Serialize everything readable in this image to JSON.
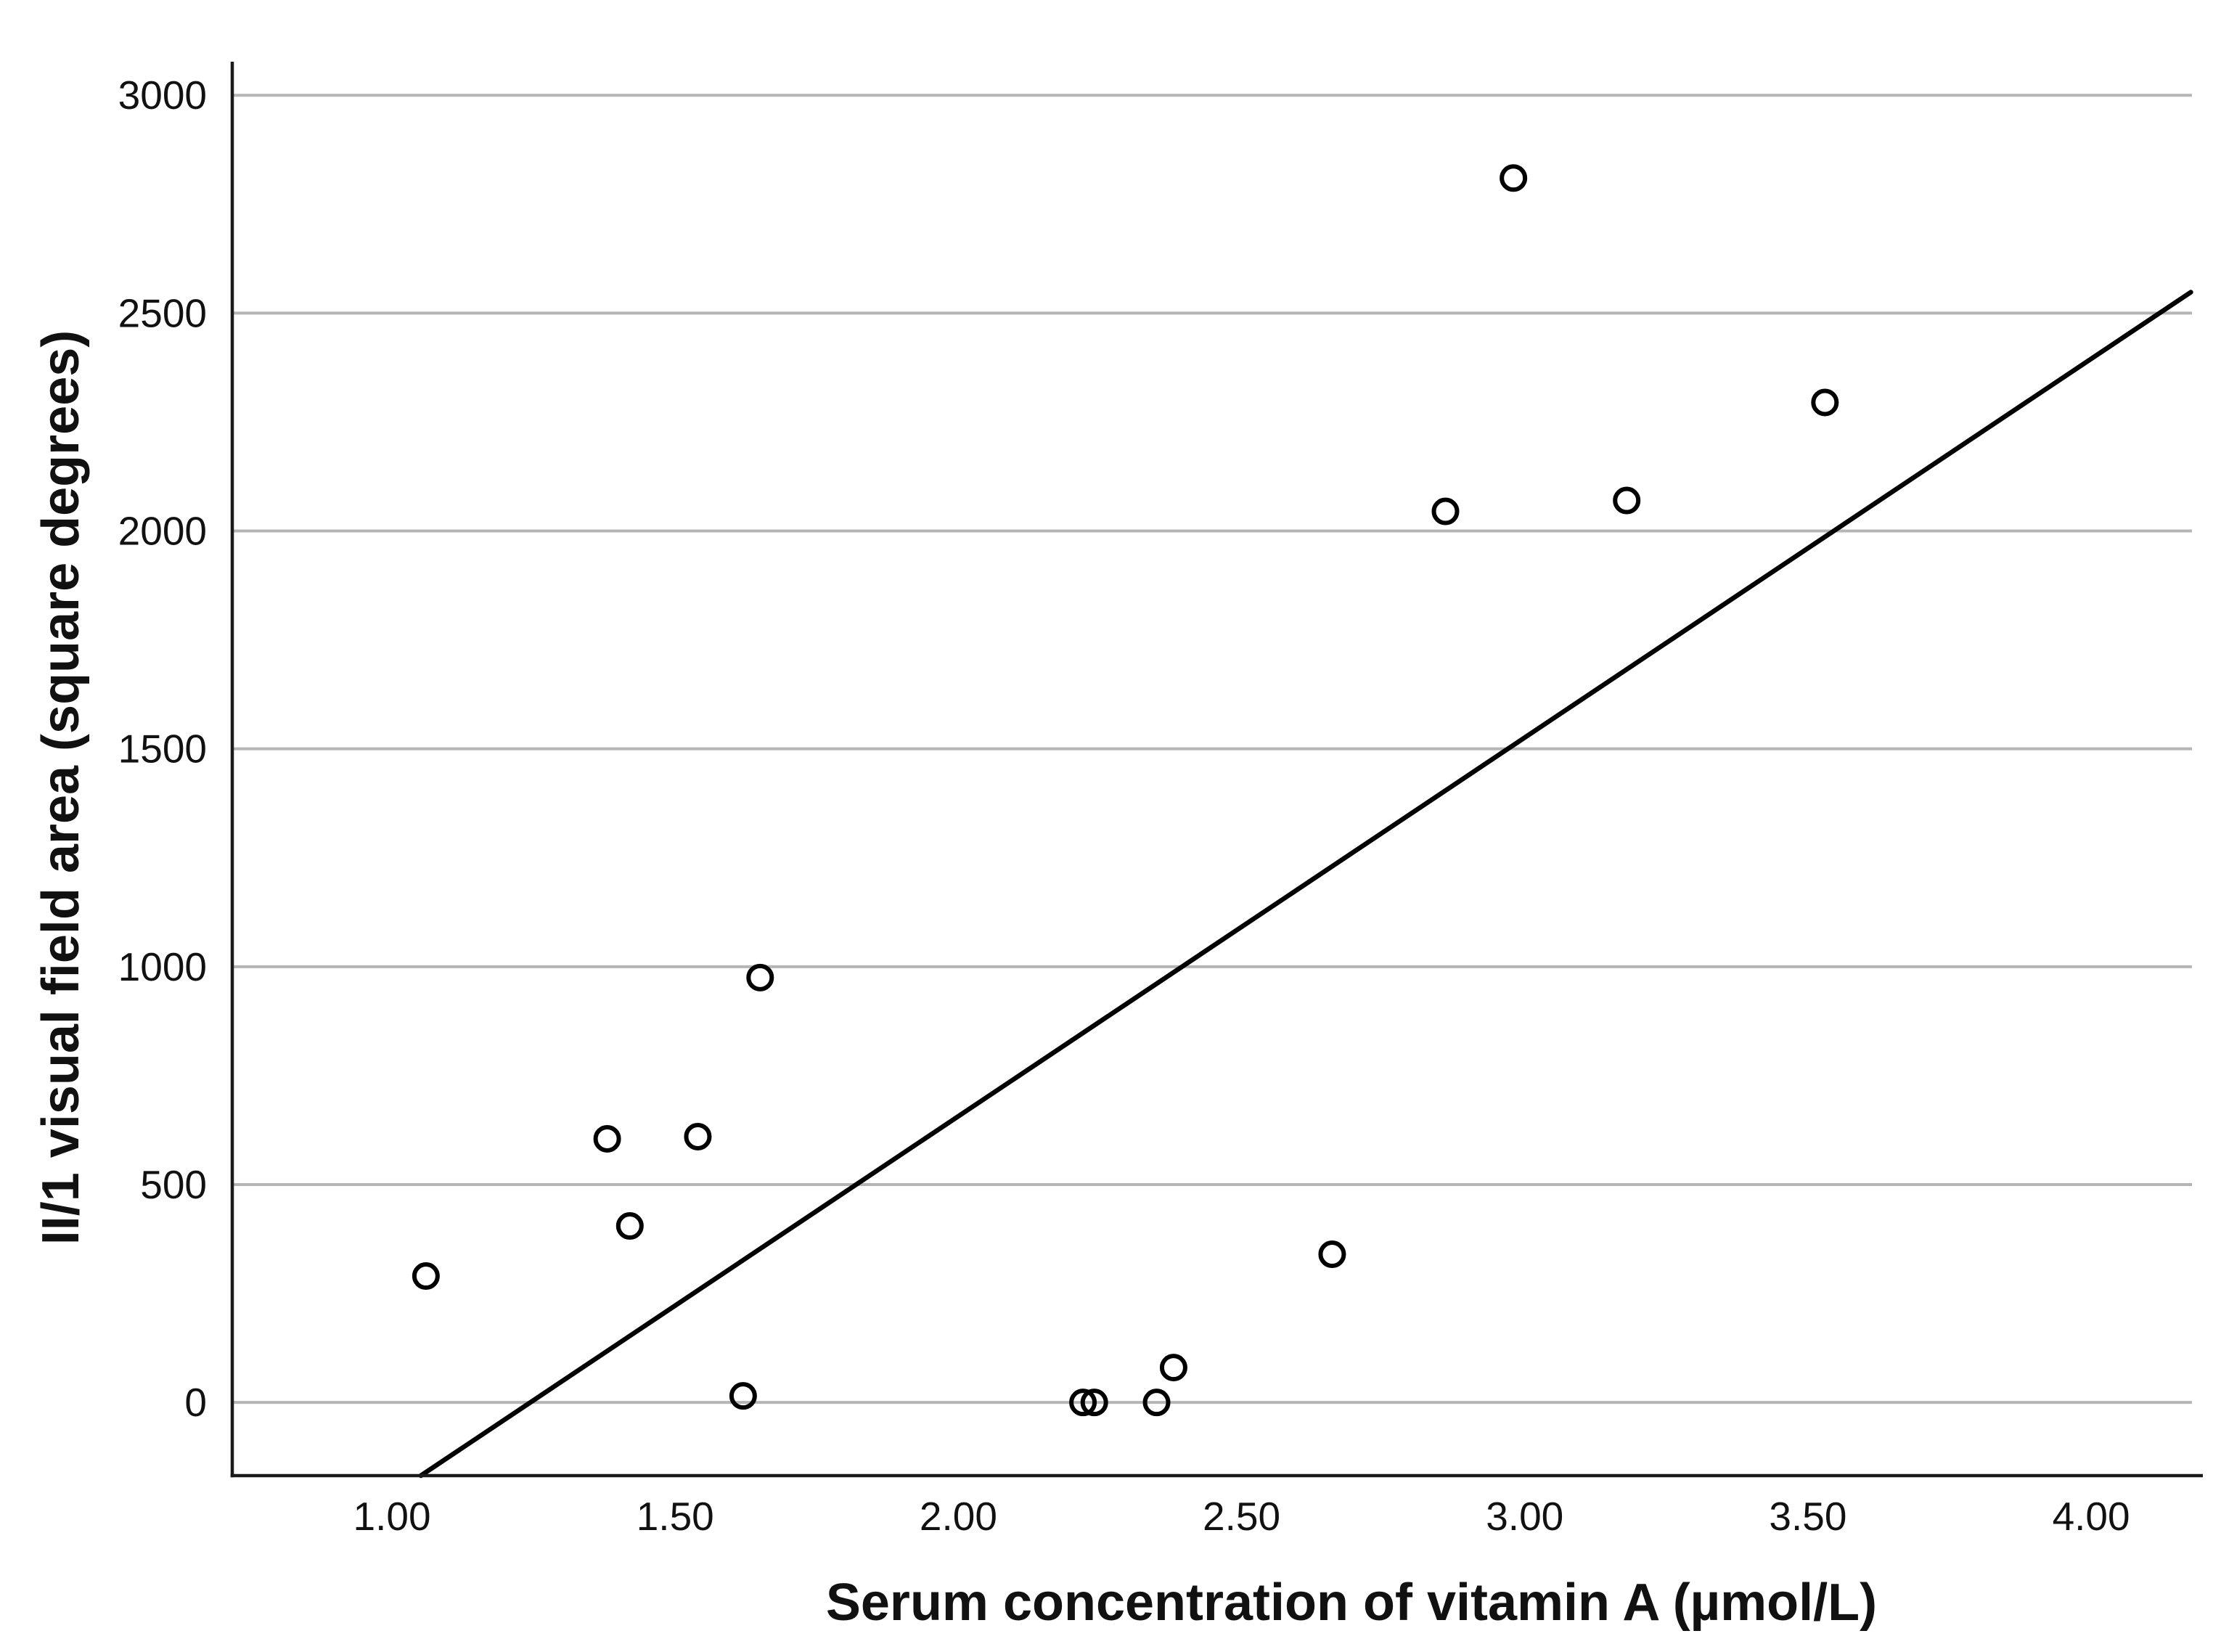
{
  "chart_data": {
    "type": "scatter",
    "title": "",
    "xlabel": "Serum concentration of vitamin A (µmol/L)",
    "ylabel": "II/1 visual field area (square degrees)",
    "x_ticks": [
      1.0,
      1.5,
      2.0,
      2.5,
      3.0,
      3.5,
      4.0
    ],
    "x_tick_labels": [
      "1.00",
      "1.50",
      "2.00",
      "2.50",
      "3.00",
      "3.50",
      "4.00"
    ],
    "y_ticks": [
      0,
      500,
      1000,
      1500,
      2000,
      2500,
      3000
    ],
    "y_tick_labels": [
      "0",
      "500",
      "1000",
      "1500",
      "2000",
      "2500",
      "3000"
    ],
    "xlim": [
      0.718,
      4.178
    ],
    "ylim": [
      -168,
      3077
    ],
    "grid": "horizontal-only",
    "legend": "none",
    "marker": {
      "shape": "open-circle",
      "color": "#000000",
      "fill": "none"
    },
    "points": [
      {
        "x": 1.06,
        "y": 290
      },
      {
        "x": 1.38,
        "y": 605
      },
      {
        "x": 1.42,
        "y": 405
      },
      {
        "x": 1.54,
        "y": 610
      },
      {
        "x": 1.62,
        "y": 15
      },
      {
        "x": 1.65,
        "y": 975
      },
      {
        "x": 2.22,
        "y": 0
      },
      {
        "x": 2.24,
        "y": 0
      },
      {
        "x": 2.35,
        "y": 0
      },
      {
        "x": 2.38,
        "y": 80
      },
      {
        "x": 2.66,
        "y": 340
      },
      {
        "x": 2.86,
        "y": 2045
      },
      {
        "x": 2.98,
        "y": 2810
      },
      {
        "x": 3.18,
        "y": 2070
      },
      {
        "x": 3.53,
        "y": 2295
      }
    ],
    "fit_line": {
      "x1": 1.051,
      "y1": -168,
      "x2": 4.176,
      "y2": 2548
    },
    "colors": {
      "grid": "#b5b5b5",
      "axis": "#1a1a1a",
      "marker": "#000000",
      "fit_line": "#000000",
      "background": "#ffffff"
    }
  }
}
